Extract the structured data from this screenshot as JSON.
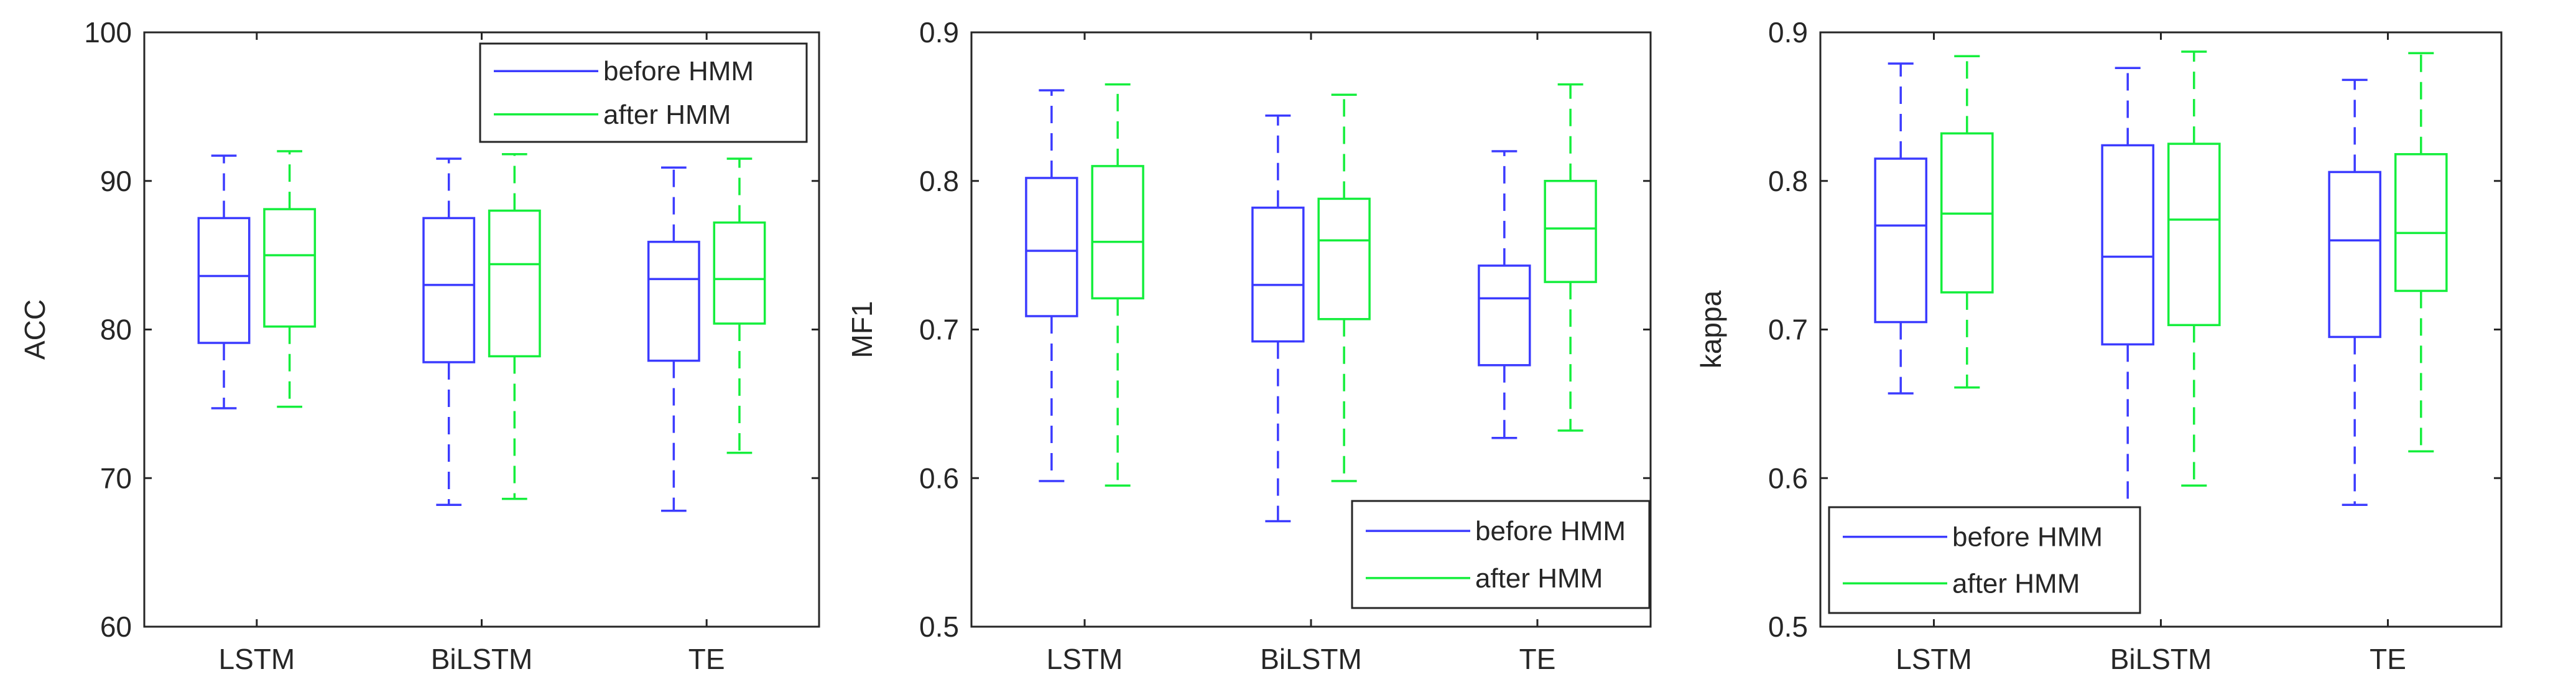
{
  "colors": {
    "before_hmm": "#3b3bff",
    "after_hmm": "#14ee3c",
    "axis": "#262626"
  },
  "chart_data": [
    {
      "type": "box",
      "title": "",
      "xlabel": "",
      "ylabel": "ACC",
      "ylim": [
        60,
        100
      ],
      "yticks": [
        60,
        70,
        80,
        90,
        100
      ],
      "ytick_labels": [
        "60",
        "70",
        "80",
        "90",
        "100"
      ],
      "categories": [
        "LSTM",
        "BiLSTM",
        "TE"
      ],
      "legend": {
        "location": "top-right",
        "entries": [
          "before HMM",
          "after HMM"
        ]
      },
      "series": [
        {
          "name": "before HMM",
          "color_key": "before_hmm",
          "boxes": [
            {
              "category": "LSTM",
              "whisker_low": 74.7,
              "q1": 79.1,
              "median": 83.6,
              "q3": 87.5,
              "whisker_high": 91.7
            },
            {
              "category": "BiLSTM",
              "whisker_low": 68.2,
              "q1": 77.8,
              "median": 83.0,
              "q3": 87.5,
              "whisker_high": 91.5
            },
            {
              "category": "TE",
              "whisker_low": 67.8,
              "q1": 77.9,
              "median": 83.4,
              "q3": 85.9,
              "whisker_high": 90.9
            }
          ]
        },
        {
          "name": "after HMM",
          "color_key": "after_hmm",
          "boxes": [
            {
              "category": "LSTM",
              "whisker_low": 74.8,
              "q1": 80.2,
              "median": 85.0,
              "q3": 88.1,
              "whisker_high": 92.0
            },
            {
              "category": "BiLSTM",
              "whisker_low": 68.6,
              "q1": 78.2,
              "median": 84.4,
              "q3": 88.0,
              "whisker_high": 91.8
            },
            {
              "category": "TE",
              "whisker_low": 71.7,
              "q1": 80.4,
              "median": 83.4,
              "q3": 87.2,
              "whisker_high": 91.5
            }
          ]
        }
      ]
    },
    {
      "type": "box",
      "title": "",
      "xlabel": "",
      "ylabel": "MF1",
      "ylim": [
        0.5,
        0.9
      ],
      "yticks": [
        0.5,
        0.6,
        0.7,
        0.8,
        0.9
      ],
      "ytick_labels": [
        "0.5",
        "0.6",
        "0.7",
        "0.8",
        "0.9"
      ],
      "categories": [
        "LSTM",
        "BiLSTM",
        "TE"
      ],
      "legend": {
        "location": "bottom-right",
        "entries": [
          "before HMM",
          "after HMM"
        ]
      },
      "series": [
        {
          "name": "before HMM",
          "color_key": "before_hmm",
          "boxes": [
            {
              "category": "LSTM",
              "whisker_low": 0.598,
              "q1": 0.709,
              "median": 0.753,
              "q3": 0.802,
              "whisker_high": 0.861
            },
            {
              "category": "BiLSTM",
              "whisker_low": 0.571,
              "q1": 0.692,
              "median": 0.73,
              "q3": 0.782,
              "whisker_high": 0.844
            },
            {
              "category": "TE",
              "whisker_low": 0.627,
              "q1": 0.676,
              "median": 0.721,
              "q3": 0.743,
              "whisker_high": 0.82
            }
          ]
        },
        {
          "name": "after HMM",
          "color_key": "after_hmm",
          "boxes": [
            {
              "category": "LSTM",
              "whisker_low": 0.595,
              "q1": 0.721,
              "median": 0.759,
              "q3": 0.81,
              "whisker_high": 0.865
            },
            {
              "category": "BiLSTM",
              "whisker_low": 0.598,
              "q1": 0.707,
              "median": 0.76,
              "q3": 0.788,
              "whisker_high": 0.858
            },
            {
              "category": "TE",
              "whisker_low": 0.632,
              "q1": 0.732,
              "median": 0.768,
              "q3": 0.8,
              "whisker_high": 0.865
            }
          ]
        }
      ]
    },
    {
      "type": "box",
      "title": "",
      "xlabel": "",
      "ylabel": "kappa",
      "ylim": [
        0.5,
        0.9
      ],
      "yticks": [
        0.5,
        0.6,
        0.7,
        0.8,
        0.9
      ],
      "ytick_labels": [
        "0.5",
        "0.6",
        "0.7",
        "0.8",
        "0.9"
      ],
      "categories": [
        "LSTM",
        "BiLSTM",
        "TE"
      ],
      "legend": {
        "location": "bottom-left",
        "entries": [
          "before HMM",
          "after HMM"
        ]
      },
      "series": [
        {
          "name": "before HMM",
          "color_key": "before_hmm",
          "boxes": [
            {
              "category": "LSTM",
              "whisker_low": 0.657,
              "q1": 0.705,
              "median": 0.77,
              "q3": 0.815,
              "whisker_high": 0.879
            },
            {
              "category": "BiLSTM",
              "whisker_low": 0.578,
              "q1": 0.69,
              "median": 0.749,
              "q3": 0.824,
              "whisker_high": 0.876
            },
            {
              "category": "TE",
              "whisker_low": 0.582,
              "q1": 0.695,
              "median": 0.76,
              "q3": 0.806,
              "whisker_high": 0.868
            }
          ]
        },
        {
          "name": "after HMM",
          "color_key": "after_hmm",
          "boxes": [
            {
              "category": "LSTM",
              "whisker_low": 0.661,
              "q1": 0.725,
              "median": 0.778,
              "q3": 0.832,
              "whisker_high": 0.884
            },
            {
              "category": "BiLSTM",
              "whisker_low": 0.595,
              "q1": 0.703,
              "median": 0.774,
              "q3": 0.825,
              "whisker_high": 0.887
            },
            {
              "category": "TE",
              "whisker_low": 0.618,
              "q1": 0.726,
              "median": 0.765,
              "q3": 0.818,
              "whisker_high": 0.886
            }
          ]
        }
      ]
    }
  ]
}
